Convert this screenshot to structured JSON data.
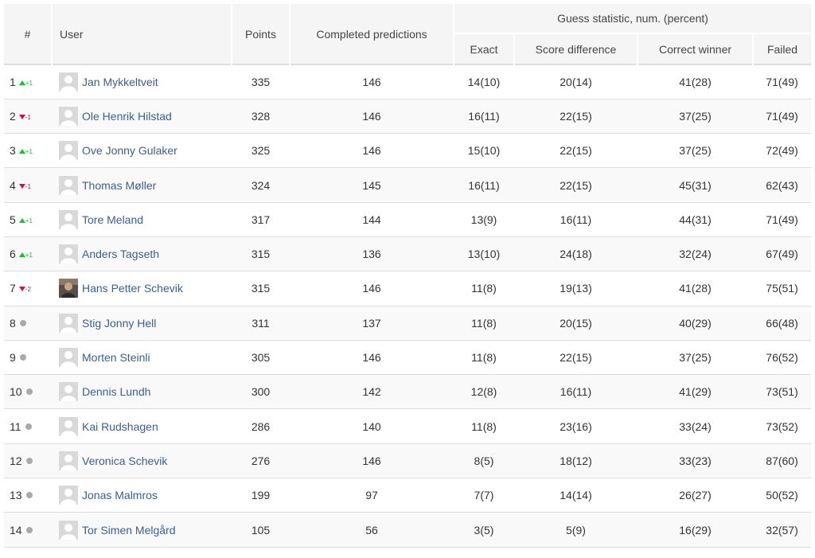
{
  "header": {
    "rank": "#",
    "user": "User",
    "points": "Points",
    "completed": "Completed predictions",
    "guess_group": "Guess statistic, num. (percent)",
    "exact": "Exact",
    "score_diff": "Score difference",
    "correct_winner": "Correct winner",
    "failed": "Failed"
  },
  "colors": {
    "trend_up": "#22bb33",
    "trend_down": "#d0104c",
    "trend_same": "#aaaaaa",
    "link": "#3a5f8f"
  },
  "rows": [
    {
      "rank": "1",
      "trend": "up",
      "delta": "+1",
      "avatar": "default-avatar-icon",
      "name": "Jan Mykkeltveit",
      "points": "335",
      "completed": "146",
      "exact": "14(10)",
      "diff": "20(14)",
      "winner": "41(28)",
      "failed": "71(49)"
    },
    {
      "rank": "2",
      "trend": "down",
      "delta": "-1",
      "avatar": "default-avatar-icon",
      "name": "Ole Henrik Hilstad",
      "points": "328",
      "completed": "146",
      "exact": "16(11)",
      "diff": "22(15)",
      "winner": "37(25)",
      "failed": "71(49)"
    },
    {
      "rank": "3",
      "trend": "up",
      "delta": "+1",
      "avatar": "default-avatar-icon",
      "name": "Ove Jonny Gulaker",
      "points": "325",
      "completed": "146",
      "exact": "15(10)",
      "diff": "22(15)",
      "winner": "37(25)",
      "failed": "72(49)"
    },
    {
      "rank": "4",
      "trend": "down",
      "delta": "-1",
      "avatar": "default-avatar-icon",
      "name": "Thomas Møller",
      "points": "324",
      "completed": "145",
      "exact": "16(11)",
      "diff": "22(15)",
      "winner": "45(31)",
      "failed": "62(43)"
    },
    {
      "rank": "5",
      "trend": "up",
      "delta": "+1",
      "avatar": "default-avatar-icon",
      "name": "Tore Meland",
      "points": "317",
      "completed": "144",
      "exact": "13(9)",
      "diff": "16(11)",
      "winner": "44(31)",
      "failed": "71(49)"
    },
    {
      "rank": "6",
      "trend": "up",
      "delta": "+1",
      "avatar": "default-avatar-icon",
      "name": "Anders Tagseth",
      "points": "315",
      "completed": "136",
      "exact": "13(10)",
      "diff": "24(18)",
      "winner": "32(24)",
      "failed": "67(49)"
    },
    {
      "rank": "7",
      "trend": "down",
      "delta": "-2",
      "avatar": "photo-avatar-icon",
      "name": "Hans Petter Schevik",
      "points": "315",
      "completed": "146",
      "exact": "11(8)",
      "diff": "19(13)",
      "winner": "41(28)",
      "failed": "75(51)"
    },
    {
      "rank": "8",
      "trend": "same",
      "delta": "",
      "avatar": "default-avatar-icon",
      "name": "Stig Jonny Hell",
      "points": "311",
      "completed": "137",
      "exact": "11(8)",
      "diff": "20(15)",
      "winner": "40(29)",
      "failed": "66(48)"
    },
    {
      "rank": "9",
      "trend": "same",
      "delta": "",
      "avatar": "default-avatar-icon",
      "name": "Morten Steinli",
      "points": "305",
      "completed": "146",
      "exact": "11(8)",
      "diff": "22(15)",
      "winner": "37(25)",
      "failed": "76(52)"
    },
    {
      "rank": "10",
      "trend": "same",
      "delta": "",
      "avatar": "default-avatar-icon",
      "name": "Dennis Lundh",
      "points": "300",
      "completed": "142",
      "exact": "12(8)",
      "diff": "16(11)",
      "winner": "41(29)",
      "failed": "73(51)"
    },
    {
      "rank": "11",
      "trend": "same",
      "delta": "",
      "avatar": "default-avatar-icon",
      "name": "Kai Rudshagen",
      "points": "286",
      "completed": "140",
      "exact": "11(8)",
      "diff": "23(16)",
      "winner": "33(24)",
      "failed": "73(52)"
    },
    {
      "rank": "12",
      "trend": "same",
      "delta": "",
      "avatar": "default-avatar-icon",
      "name": "Veronica Schevik",
      "points": "276",
      "completed": "146",
      "exact": "8(5)",
      "diff": "18(12)",
      "winner": "33(23)",
      "failed": "87(60)"
    },
    {
      "rank": "13",
      "trend": "same",
      "delta": "",
      "avatar": "default-avatar-icon",
      "name": "Jonas Malmros",
      "points": "199",
      "completed": "97",
      "exact": "7(7)",
      "diff": "14(14)",
      "winner": "26(27)",
      "failed": "50(52)"
    },
    {
      "rank": "14",
      "trend": "same",
      "delta": "",
      "avatar": "default-avatar-icon",
      "name": "Tor Simen Melgård",
      "points": "105",
      "completed": "56",
      "exact": "3(5)",
      "diff": "5(9)",
      "winner": "16(29)",
      "failed": "32(57)"
    }
  ]
}
